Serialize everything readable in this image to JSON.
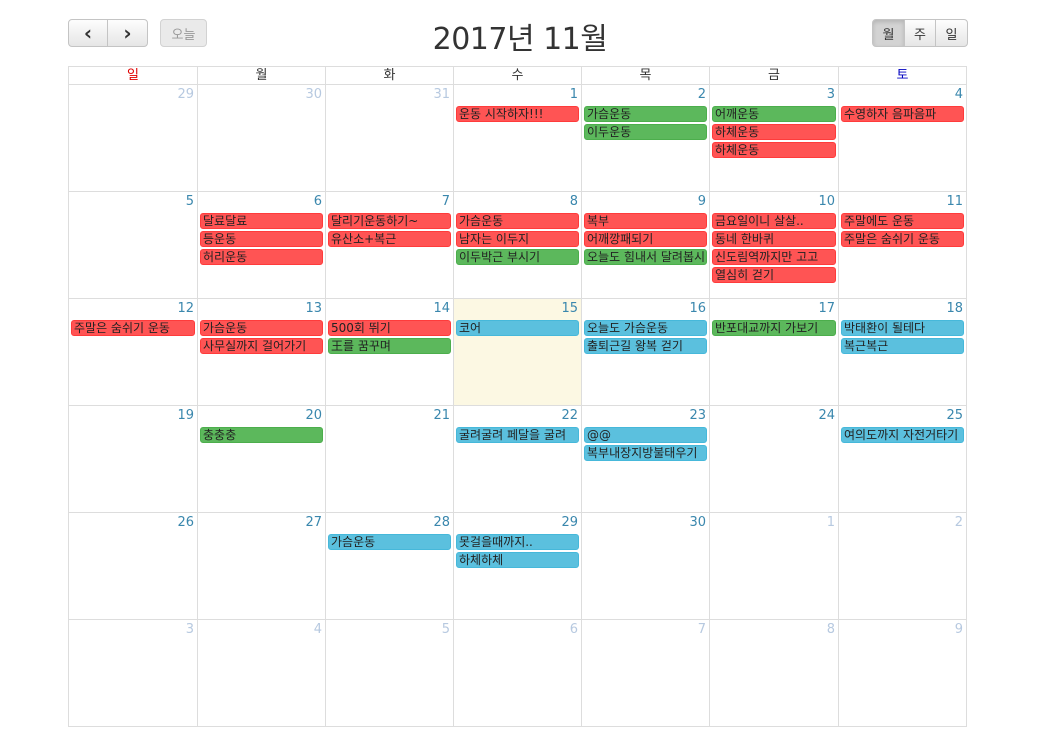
{
  "toolbar": {
    "prev_icon": "‹",
    "next_icon": "›",
    "today_label": "오늘",
    "title": "2017년 11월",
    "views": [
      "월",
      "주",
      "일"
    ],
    "active_view": "월"
  },
  "colors": {
    "sunday": "#e00000",
    "saturday": "#0000c0",
    "weekday": "#333333",
    "red_event": "#ff5454",
    "green_event": "#5cb85c",
    "blue_event": "#5bc0de",
    "today_bg": "#fcf8e3"
  },
  "weekdays": [
    "일",
    "월",
    "화",
    "수",
    "목",
    "금",
    "토"
  ],
  "weeks": [
    [
      {
        "day": "29",
        "other": true,
        "events": []
      },
      {
        "day": "30",
        "other": true,
        "events": []
      },
      {
        "day": "31",
        "other": true,
        "events": []
      },
      {
        "day": "1",
        "events": [
          {
            "title": "운동 시작하자!!!",
            "color": "red"
          }
        ]
      },
      {
        "day": "2",
        "events": [
          {
            "title": "가슴운동",
            "color": "green"
          },
          {
            "title": "이두운동",
            "color": "green"
          }
        ]
      },
      {
        "day": "3",
        "events": [
          {
            "title": "어깨운동",
            "color": "green"
          },
          {
            "title": "하체운동",
            "color": "red"
          },
          {
            "title": "하체운동",
            "color": "red"
          }
        ]
      },
      {
        "day": "4",
        "events": [
          {
            "title": "수영하자 음파음파",
            "color": "red"
          }
        ]
      }
    ],
    [
      {
        "day": "5",
        "events": []
      },
      {
        "day": "6",
        "events": [
          {
            "title": "달료달료",
            "color": "red"
          },
          {
            "title": "등운동",
            "color": "red"
          },
          {
            "title": "허리운동",
            "color": "red"
          }
        ]
      },
      {
        "day": "7",
        "events": [
          {
            "title": "달리기운동하기~",
            "color": "red"
          },
          {
            "title": "유산소+복근",
            "color": "red"
          }
        ]
      },
      {
        "day": "8",
        "events": [
          {
            "title": "가슴운동",
            "color": "red"
          },
          {
            "title": "남자는 이두지",
            "color": "red"
          },
          {
            "title": "이두박근 부시기",
            "color": "green"
          }
        ]
      },
      {
        "day": "9",
        "events": [
          {
            "title": "복부",
            "color": "red"
          },
          {
            "title": "어깨깡패되기",
            "color": "red"
          },
          {
            "title": "오늘도 힘내서 달려봅시다",
            "color": "green"
          }
        ]
      },
      {
        "day": "10",
        "events": [
          {
            "title": "금요일이니 살살..",
            "color": "red"
          },
          {
            "title": "동네 한바퀴",
            "color": "red"
          },
          {
            "title": "신도림역까지만 고고",
            "color": "red"
          },
          {
            "title": "열심히 걷기",
            "color": "red"
          }
        ]
      },
      {
        "day": "11",
        "events": [
          {
            "title": "주말에도 운동",
            "color": "red"
          },
          {
            "title": "주말은 숨쉬기 운동",
            "color": "red"
          }
        ]
      }
    ],
    [
      {
        "day": "12",
        "events": [
          {
            "title": "주말은 숨쉬기 운동",
            "color": "red"
          }
        ]
      },
      {
        "day": "13",
        "events": [
          {
            "title": "가슴운동",
            "color": "red"
          },
          {
            "title": "사무실까지 걸어가기",
            "color": "red"
          }
        ]
      },
      {
        "day": "14",
        "events": [
          {
            "title": "500회 뛰기",
            "color": "red"
          },
          {
            "title": "王를 꿈꾸며",
            "color": "green"
          }
        ]
      },
      {
        "day": "15",
        "today": true,
        "events": [
          {
            "title": "코어",
            "color": "blue"
          }
        ]
      },
      {
        "day": "16",
        "events": [
          {
            "title": "오늘도 가슴운동",
            "color": "blue"
          },
          {
            "title": "출퇴근길 왕복 걷기",
            "color": "blue"
          }
        ]
      },
      {
        "day": "17",
        "events": [
          {
            "title": "반포대교까지 가보기",
            "color": "green"
          }
        ]
      },
      {
        "day": "18",
        "events": [
          {
            "title": "박태환이 될테다",
            "color": "blue"
          },
          {
            "title": "복근복근",
            "color": "blue"
          }
        ]
      }
    ],
    [
      {
        "day": "19",
        "events": []
      },
      {
        "day": "20",
        "events": [
          {
            "title": "충충충",
            "color": "green"
          }
        ]
      },
      {
        "day": "21",
        "events": []
      },
      {
        "day": "22",
        "events": [
          {
            "title": "굴려굴려 페달을 굴려",
            "color": "blue"
          }
        ]
      },
      {
        "day": "23",
        "events": [
          {
            "title": "@@",
            "color": "blue"
          },
          {
            "title": "복부내장지방불태우기",
            "color": "blue"
          }
        ]
      },
      {
        "day": "24",
        "events": []
      },
      {
        "day": "25",
        "events": [
          {
            "title": "여의도까지 자전거타기",
            "color": "blue"
          }
        ]
      }
    ],
    [
      {
        "day": "26",
        "events": []
      },
      {
        "day": "27",
        "events": []
      },
      {
        "day": "28",
        "events": [
          {
            "title": "가슴운동",
            "color": "blue"
          }
        ]
      },
      {
        "day": "29",
        "events": [
          {
            "title": "못걸을때까지..",
            "color": "blue"
          },
          {
            "title": "하체하체",
            "color": "blue"
          }
        ]
      },
      {
        "day": "30",
        "events": []
      },
      {
        "day": "1",
        "other": true,
        "events": []
      },
      {
        "day": "2",
        "other": true,
        "events": []
      }
    ],
    [
      {
        "day": "3",
        "other": true,
        "events": []
      },
      {
        "day": "4",
        "other": true,
        "events": []
      },
      {
        "day": "5",
        "other": true,
        "events": []
      },
      {
        "day": "6",
        "other": true,
        "events": []
      },
      {
        "day": "7",
        "other": true,
        "events": []
      },
      {
        "day": "8",
        "other": true,
        "events": []
      },
      {
        "day": "9",
        "other": true,
        "events": []
      }
    ]
  ]
}
